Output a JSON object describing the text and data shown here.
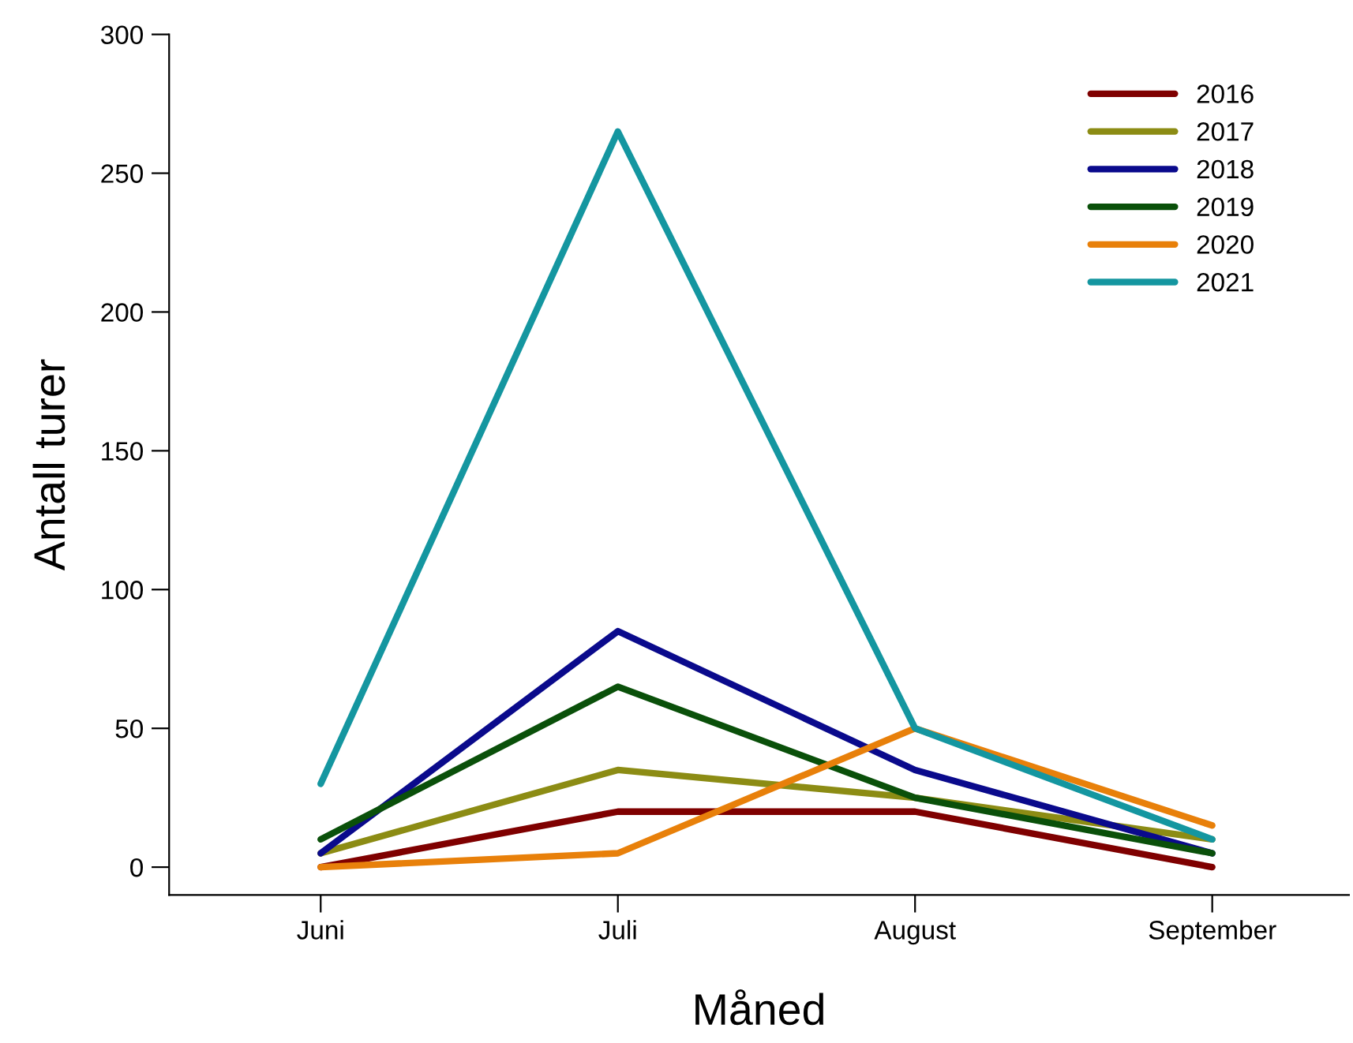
{
  "chart_data": {
    "type": "line",
    "xlabel": "Måned",
    "ylabel": "Antall turer",
    "categories": [
      "Juni",
      "Juli",
      "August",
      "September"
    ],
    "series": [
      {
        "name": "2016",
        "color": "#7f0000",
        "values": [
          0,
          20,
          20,
          0
        ]
      },
      {
        "name": "2017",
        "color": "#8c8c14",
        "values": [
          5,
          35,
          25,
          10
        ]
      },
      {
        "name": "2018",
        "color": "#0a0a8c",
        "values": [
          5,
          85,
          35,
          5
        ]
      },
      {
        "name": "2019",
        "color": "#0a500a",
        "values": [
          10,
          65,
          25,
          5
        ]
      },
      {
        "name": "2020",
        "color": "#e8800a",
        "values": [
          0,
          5,
          50,
          15
        ]
      },
      {
        "name": "2021",
        "color": "#1496a0",
        "values": [
          30,
          265,
          50,
          10
        ]
      }
    ],
    "ylim": [
      -10,
      300
    ],
    "yticks": [
      0,
      50,
      100,
      150,
      200,
      250,
      300
    ],
    "grid": false,
    "legend": "top right",
    "marker": "none",
    "line_style": "solid"
  }
}
